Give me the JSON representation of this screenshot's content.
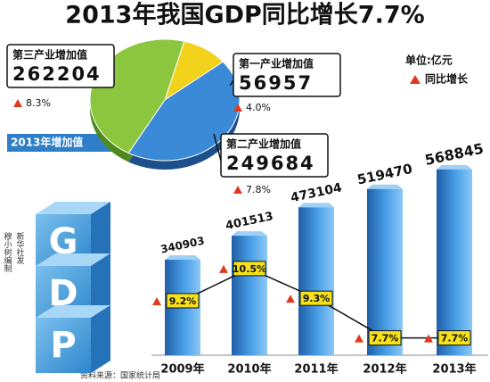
{
  "chart_data": [
    {
      "type": "pie",
      "title": "2013年我国GDP同比增长7.7%",
      "subtitle": "2013年增加值",
      "categories": [
        "第一产业增加值",
        "第二产业增加值",
        "第三产业增加值"
      ],
      "values": [
        56957,
        249684,
        262204
      ],
      "colors": [
        "#f2d21a",
        "#3b8ad8",
        "#8cc63f"
      ],
      "growth": {
        "values": [
          4.0,
          7.8,
          8.3
        ],
        "value_labels": [
          "4.0%",
          "7.8%",
          "8.3%"
        ]
      }
    },
    {
      "type": "bar",
      "unit": "单位:亿元",
      "categories": [
        "2009年",
        "2010年",
        "2011年",
        "2012年",
        "2013年"
      ],
      "ylim": [
        100000,
        600000
      ],
      "y2lim": [
        7,
        15
      ],
      "series": [
        {
          "values": [
            340903,
            401513,
            473104,
            519470,
            568845
          ],
          "color": "#2f7fc8"
        },
        {
          "name": "同比增长",
          "type": "line",
          "axis": "y2",
          "color": "#e03a1e",
          "values": [
            9.2,
            10.5,
            9.3,
            7.7,
            7.7
          ],
          "value_labels": [
            "9.2%",
            "10.5%",
            "9.3%",
            "7.7%",
            "7.7%"
          ]
        }
      ]
    }
  ],
  "credits": {
    "logo": [
      "G",
      "D",
      "P"
    ],
    "author": [
      "穆小树编制",
      "新华社发"
    ],
    "source": "资料来源：国家统计局"
  }
}
